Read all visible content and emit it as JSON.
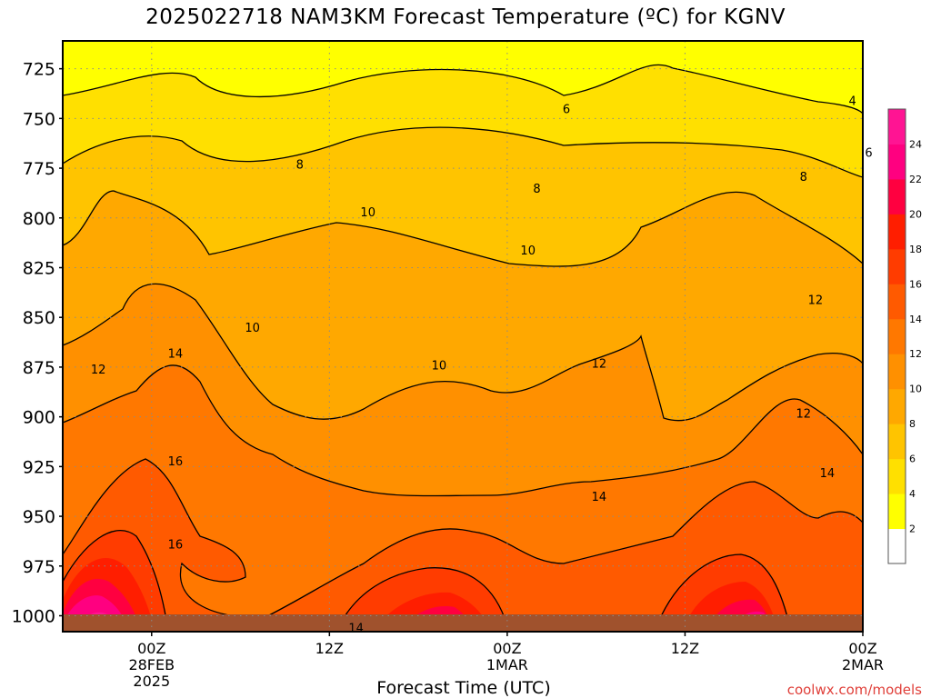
{
  "chart_data": {
    "type": "heatmap",
    "title": "2025022718 NAM3KM Forecast Temperature (ºC) for KGNV",
    "xlabel": "Forecast Time (UTC)",
    "credit": "coolwx.com/models",
    "y_axis": {
      "label": "",
      "ticks": [
        725,
        750,
        775,
        800,
        825,
        850,
        875,
        900,
        925,
        950,
        975,
        1000
      ],
      "range": [
        1008,
        711
      ],
      "inverted": true
    },
    "x_axis": {
      "range_hours": [
        0,
        54
      ],
      "ticks": [
        {
          "hour": 6,
          "lines": [
            "00Z",
            "28FEB",
            "2025"
          ]
        },
        {
          "hour": 18,
          "lines": [
            "12Z"
          ]
        },
        {
          "hour": 30,
          "lines": [
            "00Z",
            "1MAR"
          ]
        },
        {
          "hour": 42,
          "lines": [
            "12Z"
          ]
        },
        {
          "hour": 54,
          "lines": [
            "00Z",
            "2MAR"
          ]
        }
      ]
    },
    "grid": true,
    "colorbar": {
      "labels": [
        2,
        4,
        6,
        8,
        10,
        12,
        14,
        16,
        18,
        20,
        22,
        24
      ],
      "colors": [
        "#ffffff",
        "#ffff00",
        "#ffe000",
        "#ffc400",
        "#ffa800",
        "#ff9000",
        "#ff7800",
        "#ff5a00",
        "#ff3c00",
        "#ff1e00",
        "#ff0040",
        "#ff0080",
        "#ff1493"
      ]
    },
    "colors": {
      "ground": "#a0522d",
      "contour": "#000000"
    },
    "contour_labels": [
      {
        "value": "4",
        "hour": 53.3,
        "p": 741
      },
      {
        "value": "6",
        "hour": 34,
        "p": 745
      },
      {
        "value": "6",
        "hour": 54.4,
        "p": 767
      },
      {
        "value": "8",
        "hour": 16,
        "p": 773
      },
      {
        "value": "8",
        "hour": 32,
        "p": 785
      },
      {
        "value": "8",
        "hour": 50,
        "p": 779
      },
      {
        "value": "10",
        "hour": 20.6,
        "p": 797
      },
      {
        "value": "10",
        "hour": 31.4,
        "p": 816
      },
      {
        "value": "10",
        "hour": 12.8,
        "p": 855
      },
      {
        "value": "10",
        "hour": 25.4,
        "p": 874
      },
      {
        "value": "12",
        "hour": 2.4,
        "p": 876
      },
      {
        "value": "12",
        "hour": 36.2,
        "p": 873
      },
      {
        "value": "12",
        "hour": 50.8,
        "p": 841
      },
      {
        "value": "12",
        "hour": 50,
        "p": 898
      },
      {
        "value": "14",
        "hour": 7.6,
        "p": 868
      },
      {
        "value": "14",
        "hour": 36.2,
        "p": 940
      },
      {
        "value": "14",
        "hour": 51.6,
        "p": 928
      },
      {
        "value": "14",
        "hour": 19.8,
        "p": 1006
      },
      {
        "value": "16",
        "hour": 7.6,
        "p": 922
      },
      {
        "value": "16",
        "hour": 7.6,
        "p": 964
      }
    ]
  }
}
